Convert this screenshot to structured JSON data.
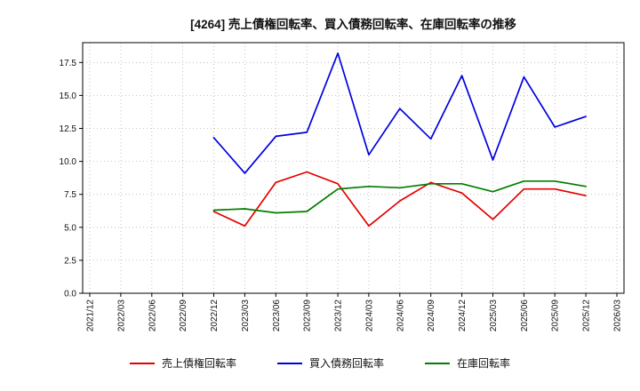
{
  "title": "[4264]  売上債権回転率、買入債務回転率、在庫回転率の推移",
  "chart_data": {
    "type": "line",
    "categories": [
      "2021/12",
      "2022/03",
      "2022/06",
      "2022/09",
      "2022/12",
      "2023/03",
      "2023/06",
      "2023/09",
      "2023/12",
      "2024/03",
      "2024/06",
      "2024/09",
      "2024/12",
      "2025/03",
      "2025/06",
      "2025/09",
      "2025/12",
      "2026/03"
    ],
    "series": [
      {
        "key": "receivables-turnover",
        "name": "売上債権回転率",
        "color": "#e60000",
        "start_index": 4,
        "values": [
          6.2,
          5.1,
          8.4,
          9.2,
          8.3,
          5.1,
          7.0,
          8.4,
          7.6,
          5.6,
          7.9,
          7.9,
          7.4
        ]
      },
      {
        "key": "payables-turnover",
        "name": "買入債務回転率",
        "color": "#0000e0",
        "start_index": 4,
        "values": [
          11.8,
          9.1,
          11.9,
          12.2,
          18.2,
          10.5,
          14.0,
          11.7,
          16.5,
          10.1,
          16.4,
          12.6,
          13.4
        ]
      },
      {
        "key": "inventory-turnover",
        "name": "在庫回転率",
        "color": "#007f00",
        "start_index": 4,
        "values": [
          6.3,
          6.4,
          6.1,
          6.2,
          7.9,
          8.1,
          8.0,
          8.3,
          8.3,
          7.7,
          8.5,
          8.5,
          8.1
        ]
      }
    ],
    "ylim": [
      0,
      19
    ],
    "yticks": [
      0.0,
      2.5,
      5.0,
      7.5,
      10.0,
      12.5,
      15.0,
      17.5
    ],
    "grid": true,
    "legend_position": "bottom"
  }
}
